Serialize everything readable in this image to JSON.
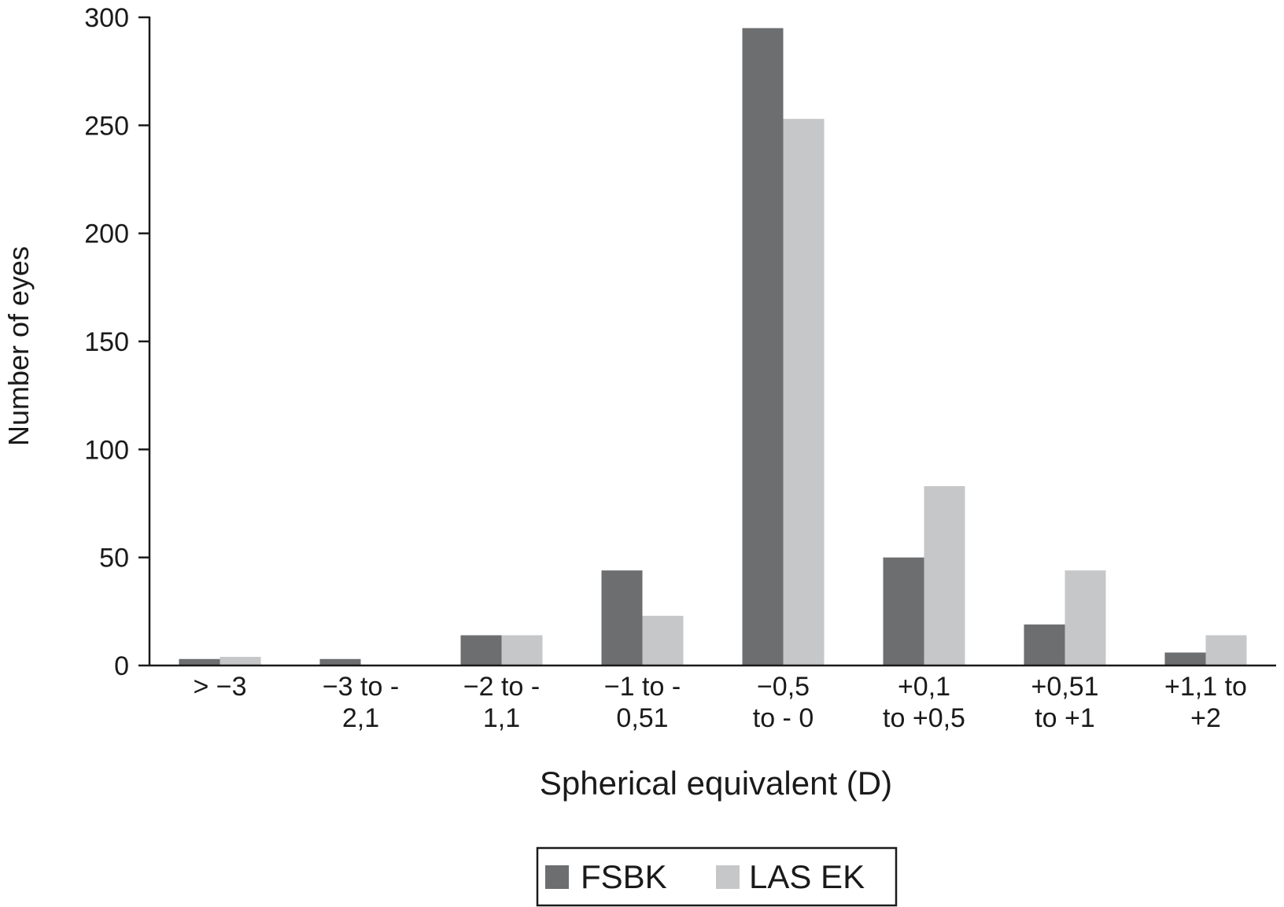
{
  "chart_data": {
    "type": "bar",
    "xlabel": "Spherical equivalent (D)",
    "ylabel": "Number of eyes",
    "ylim": [
      0,
      300
    ],
    "yticks": [
      0,
      50,
      100,
      150,
      200,
      250,
      300
    ],
    "categories": [
      [
        "> −3"
      ],
      [
        "−3 to -",
        "2,1"
      ],
      [
        "−2 to -",
        "1,1"
      ],
      [
        "−1 to -",
        "0,51"
      ],
      [
        "−0,5",
        "to - 0"
      ],
      [
        "+0,1",
        "to +0,5"
      ],
      [
        "+0,51",
        "to +1"
      ],
      [
        "+1,1 to",
        "+2"
      ]
    ],
    "series": [
      {
        "name": "FSBK",
        "color": "#6d6e70",
        "values": [
          3,
          3,
          14,
          44,
          295,
          50,
          19,
          6
        ]
      },
      {
        "name": "LAS EK",
        "color": "#c6c7c8",
        "values": [
          4,
          0,
          14,
          23,
          253,
          83,
          44,
          14
        ]
      }
    ],
    "legend_position": "bottom-center",
    "grid": false
  }
}
